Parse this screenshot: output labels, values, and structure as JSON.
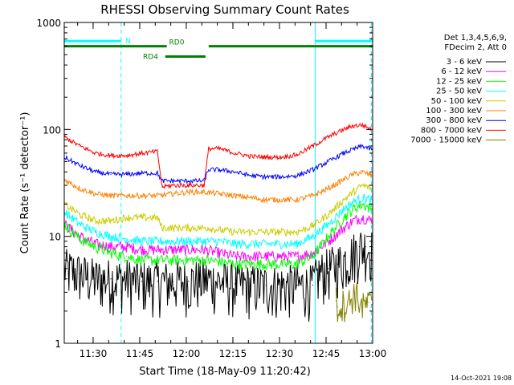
{
  "chart_data": {
    "type": "line",
    "title": "RHESSI Observing Summary Count Rates",
    "xlabel": "Start Time (18-May-09 11:20:42)",
    "ylabel": "Count Rate (s⁻¹ detector⁻¹)",
    "yscale": "log",
    "ylim": [
      1,
      1000
    ],
    "xlim_minutes": [
      0,
      99.3
    ],
    "x_tick_labels": [
      "11:30",
      "11:45",
      "12:00",
      "12:15",
      "12:30",
      "12:45",
      "13:00"
    ],
    "y_tick_labels": [
      "1",
      "10",
      "100",
      "1000"
    ],
    "legend_header": [
      "Det 1,3,4,5,6,9,",
      "FDecim 2, Att 0"
    ],
    "timestamp": "14-Oct-2021 19:08",
    "flags": [
      {
        "name": "N",
        "color": "#00ffff",
        "y": 670,
        "segments": [
          [
            0,
            18.3
          ],
          [
            80.8,
            99.3
          ]
        ]
      },
      {
        "name": "RD0",
        "color": "#008000",
        "y": 600,
        "segments": [
          [
            0,
            33.0
          ],
          [
            46.5,
            99.3
          ]
        ]
      },
      {
        "name": "RD4",
        "color": "#008000",
        "y": 480,
        "segments": [
          [
            32.5,
            45.5
          ]
        ]
      }
    ],
    "vertical_markers": [
      {
        "minute": 0.0,
        "style": "solid",
        "color": "#00ffff"
      },
      {
        "minute": 18.3,
        "style": "dashed",
        "color": "#00ffff"
      },
      {
        "minute": 80.8,
        "style": "solid",
        "color": "#00ffff"
      },
      {
        "minute": 98.9,
        "style": "dashed",
        "color": "#00ffff"
      }
    ],
    "series": [
      {
        "name": "3 - 6 keV",
        "color": "#000000",
        "x": [
          0,
          5,
          10,
          15,
          20,
          25,
          30,
          35,
          40,
          45,
          50,
          55,
          60,
          65,
          70,
          75,
          80,
          82,
          85,
          88,
          90,
          93,
          95,
          97,
          99
        ],
        "values": [
          5,
          4.5,
          4,
          4,
          4,
          3.8,
          3.8,
          3.8,
          3.8,
          4,
          3.8,
          3.6,
          3.5,
          3.5,
          3.5,
          3.5,
          3.5,
          4.5,
          5,
          5.5,
          6,
          7,
          8,
          8,
          7.5
        ]
      },
      {
        "name": "6 - 12 keV",
        "color": "#ff00ff",
        "x": [
          0,
          5,
          10,
          15,
          20,
          25,
          30,
          35,
          40,
          45,
          50,
          55,
          60,
          65,
          70,
          75,
          80,
          85,
          90,
          93,
          96,
          99
        ],
        "values": [
          13,
          10,
          8.5,
          8,
          8,
          7.5,
          7.5,
          7.5,
          7.5,
          7.5,
          7,
          6.5,
          6.5,
          6.5,
          6.5,
          6.5,
          7,
          9,
          12,
          14,
          15,
          14
        ]
      },
      {
        "name": "12 - 25 keV",
        "color": "#00ff00",
        "x": [
          0,
          5,
          10,
          15,
          20,
          25,
          30,
          35,
          40,
          45,
          50,
          55,
          60,
          65,
          70,
          75,
          80,
          85,
          90,
          93,
          96,
          99
        ],
        "values": [
          13,
          9.5,
          8,
          7,
          6.5,
          6,
          6,
          6,
          6,
          6,
          5.8,
          5.5,
          5.5,
          5.5,
          5.5,
          5.5,
          6.5,
          10,
          15,
          18,
          20,
          18
        ]
      },
      {
        "name": "25 - 50 keV",
        "color": "#00ffff",
        "x": [
          0,
          5,
          10,
          15,
          20,
          25,
          30,
          35,
          40,
          45,
          50,
          55,
          60,
          65,
          70,
          75,
          80,
          85,
          90,
          93,
          96,
          99
        ],
        "values": [
          17,
          13,
          11,
          10,
          9.5,
          9,
          9,
          9,
          9,
          9,
          9,
          8.5,
          8.5,
          8.5,
          8.5,
          8.5,
          10,
          13,
          18,
          21,
          23,
          22
        ]
      },
      {
        "name": "50 - 100 keV",
        "color": "#cccc00",
        "x": [
          0,
          5,
          10,
          15,
          20,
          25,
          30,
          31.5,
          35,
          40,
          45,
          46.5,
          50,
          55,
          60,
          65,
          70,
          75,
          80,
          85,
          90,
          93,
          96,
          99
        ],
        "values": [
          20,
          16,
          14,
          14,
          15,
          15,
          15,
          12,
          12,
          12,
          12,
          12,
          11.5,
          11,
          11,
          11,
          11,
          11,
          12.5,
          16,
          22,
          26,
          30,
          28
        ]
      },
      {
        "name": "100 - 300 keV",
        "color": "#ff8000",
        "x": [
          0,
          5,
          10,
          15,
          20,
          25,
          30,
          35,
          40,
          45,
          50,
          55,
          60,
          65,
          70,
          75,
          80,
          85,
          90,
          93,
          96,
          99
        ],
        "values": [
          34,
          28,
          25,
          24,
          24,
          24,
          24,
          25,
          26,
          26,
          25,
          24,
          23,
          22,
          22,
          22,
          24,
          28,
          34,
          38,
          40,
          37
        ]
      },
      {
        "name": "300 - 800 keV",
        "color": "#0000ff",
        "x": [
          0,
          5,
          10,
          15,
          20,
          25,
          30,
          31.5,
          35,
          40,
          45,
          46.5,
          50,
          55,
          60,
          65,
          70,
          75,
          80,
          85,
          90,
          93,
          96,
          99
        ],
        "values": [
          55,
          46,
          40,
          38,
          38,
          39,
          39,
          33,
          33,
          33,
          33,
          42,
          42,
          40,
          37,
          36,
          36,
          37,
          42,
          50,
          60,
          65,
          70,
          65
        ]
      },
      {
        "name": "800 - 7000 keV",
        "color": "#ff0000",
        "x": [
          0,
          5,
          10,
          15,
          20,
          25,
          30,
          31.5,
          35,
          40,
          45,
          46.5,
          50,
          55,
          60,
          65,
          70,
          75,
          80,
          85,
          90,
          93,
          96,
          99
        ],
        "values": [
          85,
          70,
          60,
          57,
          57,
          60,
          62,
          29,
          30,
          30,
          30,
          66,
          66,
          60,
          56,
          55,
          55,
          58,
          70,
          85,
          100,
          108,
          110,
          100
        ]
      },
      {
        "name": "7000 - 15000 keV",
        "color": "#808000",
        "x": [
          87.5,
          88,
          90,
          92,
          93.5,
          94,
          96,
          98,
          99
        ],
        "values": [
          2.5,
          2.2,
          2.4,
          2.5,
          3.0,
          2.9,
          2.2,
          2.4,
          2.3
        ]
      }
    ]
  }
}
